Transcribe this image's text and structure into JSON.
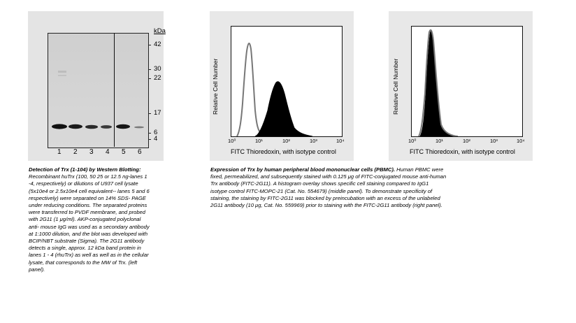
{
  "blot": {
    "kda_label": "kDa",
    "markers": [
      "42",
      "30",
      "22",
      "17",
      "6",
      "4"
    ],
    "lanes": [
      "1",
      "2",
      "3",
      "4",
      "5",
      "6"
    ]
  },
  "middle_panel": {
    "ylabel": "Relative Cell Number",
    "xlabel": "FITC Thioredoxin, with isotype control",
    "xticks": [
      "10⁰",
      "10¹",
      "10²",
      "10³",
      "10⁴"
    ]
  },
  "right_panel": {
    "ylabel": "Relative Cell Number",
    "xlabel": "FITC Thioredoxin, with isotype control",
    "xticks": [
      "10⁰",
      "10¹",
      "10²",
      "10³",
      "10⁴"
    ]
  },
  "caption_left": {
    "title": "Detection of Trx (1-104) by Western Blotting:",
    "lines": [
      "Recombinant huTrx (100, 50 25 or 12.5 ng-lanes 1",
      "-4, respectively) or dilutions of U937 cell lysate",
      "(5x10e4 or 2.5x10e4 cell equivalent-- lanes 5 and 6",
      "respectively) were separated on 14% SDS- PAGE",
      "under reducing conditions. The separated proteins",
      "were transferred to PVDF membrane, and probed",
      "with 2G11 (1 μg/ml). AKP-conjugated polyclonal",
      "anti- mouse IgG was used as a secondary antibody",
      "at 1:1000 dilution, and the blot was developed with",
      "BCIP/NBT substrate (Sigma). The 2G11 antibody",
      "detects a single, approx. 12 kDa band protein in",
      "lanes 1 - 4 (rhuTrx) as well as well as in the cellular",
      "lysate, that corresponds to the MW of Trx. (left",
      "panel)."
    ]
  },
  "caption_right": {
    "title": "Expression of Trx by human peripheral blood mononuclear cells (PBMC).",
    "first_line_rest": "Human PBMC were",
    "lines": [
      "fixed, permeabilized, and subsequently stained with 0.125 μg of FITC-conjugated mouse anti-human",
      "Trx antibody (FITC-2G11). A histogram overlay shows specific cell staining compared to IgG1",
      "isotype control FITC-MOPC-21 (Cat. No. 554679) (middle panel). To demonstrate specificity of",
      "staining, the staining by FITC-2G11 was blocked by preincubation with an excess of the unlabeled",
      "2G11 antibody (10 μg, Cat. No. 559969) prior to staining with the FITC-2G11 antibody (right panel)."
    ]
  }
}
